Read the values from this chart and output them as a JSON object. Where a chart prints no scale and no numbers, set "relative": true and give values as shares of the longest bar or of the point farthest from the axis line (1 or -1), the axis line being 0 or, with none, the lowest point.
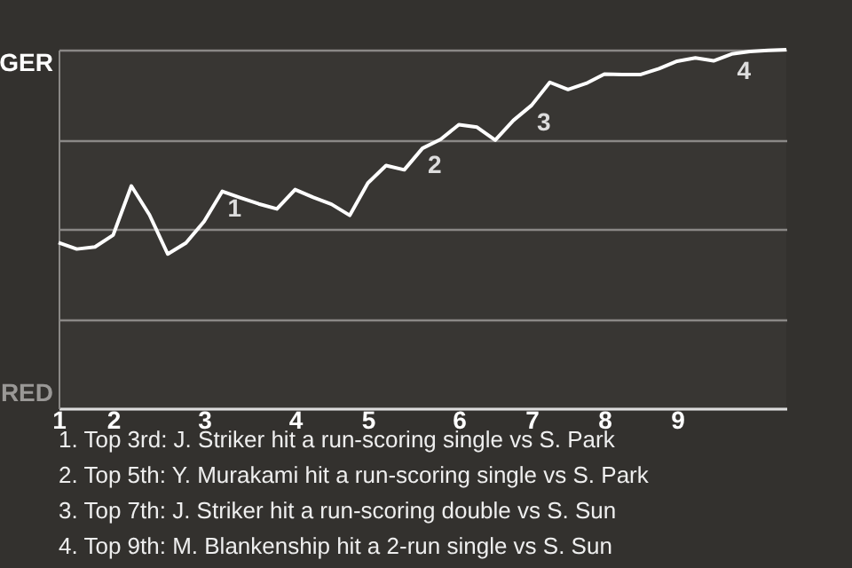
{
  "chart_data": {
    "type": "line",
    "relative": true,
    "categories": [
      "1",
      null,
      null,
      "2",
      null,
      null,
      null,
      null,
      "3",
      null,
      null,
      null,
      null,
      "4",
      null,
      null,
      null,
      "5",
      null,
      null,
      null,
      null,
      "6",
      null,
      null,
      null,
      "7",
      null,
      null,
      null,
      "8",
      null,
      null,
      null,
      "9",
      null,
      null,
      null,
      null,
      null,
      null
    ],
    "series": [
      {
        "color": "#ffffff",
        "values": [
          0.462,
          0.444,
          0.45,
          0.483,
          0.62,
          0.539,
          0.43,
          0.461,
          0.521,
          0.605,
          0.587,
          0.57,
          0.556,
          0.61,
          0.588,
          0.569,
          0.538,
          0.628,
          0.677,
          0.665,
          0.725,
          0.75,
          0.791,
          0.784,
          0.748,
          0.803,
          0.845,
          0.909,
          0.889,
          0.906,
          0.932,
          0.931,
          0.931,
          0.947,
          0.968,
          0.977,
          0.969,
          0.988,
          0.995,
          0.998,
          1.0
        ]
      }
    ],
    "grid": "y",
    "marker": "none",
    "line_style": "solid",
    "annotations": [
      "GER",
      "RED",
      {
        "text": "1",
        "y": 0.605
      },
      {
        "text": "2",
        "y": 0.725
      },
      {
        "text": "3",
        "y": 0.845
      },
      {
        "text": "4",
        "y": 0.988
      },
      "1. Top 3rd: J. Striker hit a run-scoring single vs S. Park",
      "2. Top 5th: Y. Murakami hit a run-scoring single vs S. Park",
      "3. Top 7th: J. Striker hit a run-scoring double vs S. Sun",
      "4. Top 9th: M. Blankenship hit a 2-run single vs S. Sun"
    ]
  }
}
